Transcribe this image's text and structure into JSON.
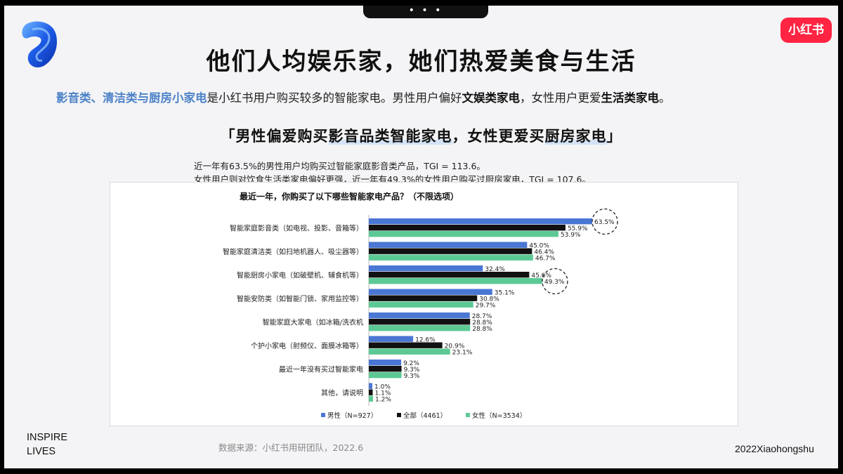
{
  "page": {
    "title": "他们人均娱乐家，她们热爱美食与生活",
    "subtitle_parts": {
      "blue": "影音类、清洁类与厨房小家电",
      "mid": "是小红书用户购买较多的智能家电。男性用户偏好",
      "bold1": "文娱类家电",
      "mid2": "，女性用户更爱",
      "bold2": "生活类家电",
      "end": "。"
    },
    "quote_parts": {
      "open": "「男性偏爱购买",
      "hl1": "影音品类智能家电",
      "mid": "，女性更爱买",
      "hl2": "厨房家电",
      "close": "」"
    },
    "desc_line1": "近一年有63.5%的男性用户均购买过智能家庭影音类产品，TGI = 113.6。",
    "desc_line2": "女性用户则对饮食生活类家电偏好更强，近一年有49.3%的女性用户购买过厨房家电，TGI = 107.6。",
    "brand_badge": "小红书",
    "inspire_line1": "INSPIRE",
    "inspire_line2": "LIVES",
    "source": "数据来源：小红书用研团队，2022.6",
    "footer_brand": "2022Xiaohongshu",
    "top_dots": "• • •"
  },
  "colors": {
    "male": "#4a76d4",
    "all": "#111111",
    "female": "#5cc995",
    "badge": "#ff2442"
  },
  "chart_data": {
    "type": "bar",
    "orientation": "horizontal",
    "title": "最近一年，你购买了以下哪些智能家电产品？（不限选项）",
    "categories": [
      "智能家庭影音类（如电视、投影、音箱等）",
      "智能家庭清洁类（如扫地机器人、吸尘器等）",
      "智能厨房小家电（如破壁机、辅食机等）",
      "智能安防类（如智能门锁、家用监控等）",
      "智能家庭大家电（如冰箱/洗衣机",
      "个护小家电（射频仪、面膜冰箱等）",
      "最近一年没有买过智能家电",
      "其他，请说明"
    ],
    "series": [
      {
        "name": "男性（N=927）",
        "values": [
          63.5,
          45.0,
          32.4,
          35.1,
          28.7,
          12.6,
          9.2,
          1.0
        ],
        "labels": [
          "63.5%",
          "45.0%",
          "32.4%",
          "35.1%",
          "28.7%",
          "12.6%",
          "9.2%",
          "1.0%"
        ]
      },
      {
        "name": "全部（4461）",
        "values": [
          55.9,
          46.4,
          45.6,
          30.8,
          28.8,
          20.9,
          9.3,
          1.1
        ],
        "labels": [
          "55.9%",
          "46.4%",
          "45.6%",
          "30.8%",
          "28.8%",
          "20.9%",
          "9.3%",
          "1.1%"
        ]
      },
      {
        "name": "女性（N=3534）",
        "values": [
          53.9,
          46.7,
          49.3,
          29.7,
          28.8,
          23.1,
          9.3,
          1.2
        ],
        "labels": [
          "53.9%",
          "46.7%",
          "49.3%",
          "29.7%",
          "28.8%",
          "23.1%",
          "9.3%",
          "1.2%"
        ]
      }
    ],
    "xlim": [
      0,
      63.5
    ],
    "highlighted": [
      {
        "category_index": 0,
        "series_index": 0
      },
      {
        "category_index": 2,
        "series_index": 2
      }
    ],
    "legend": "bottom",
    "grid": false
  }
}
